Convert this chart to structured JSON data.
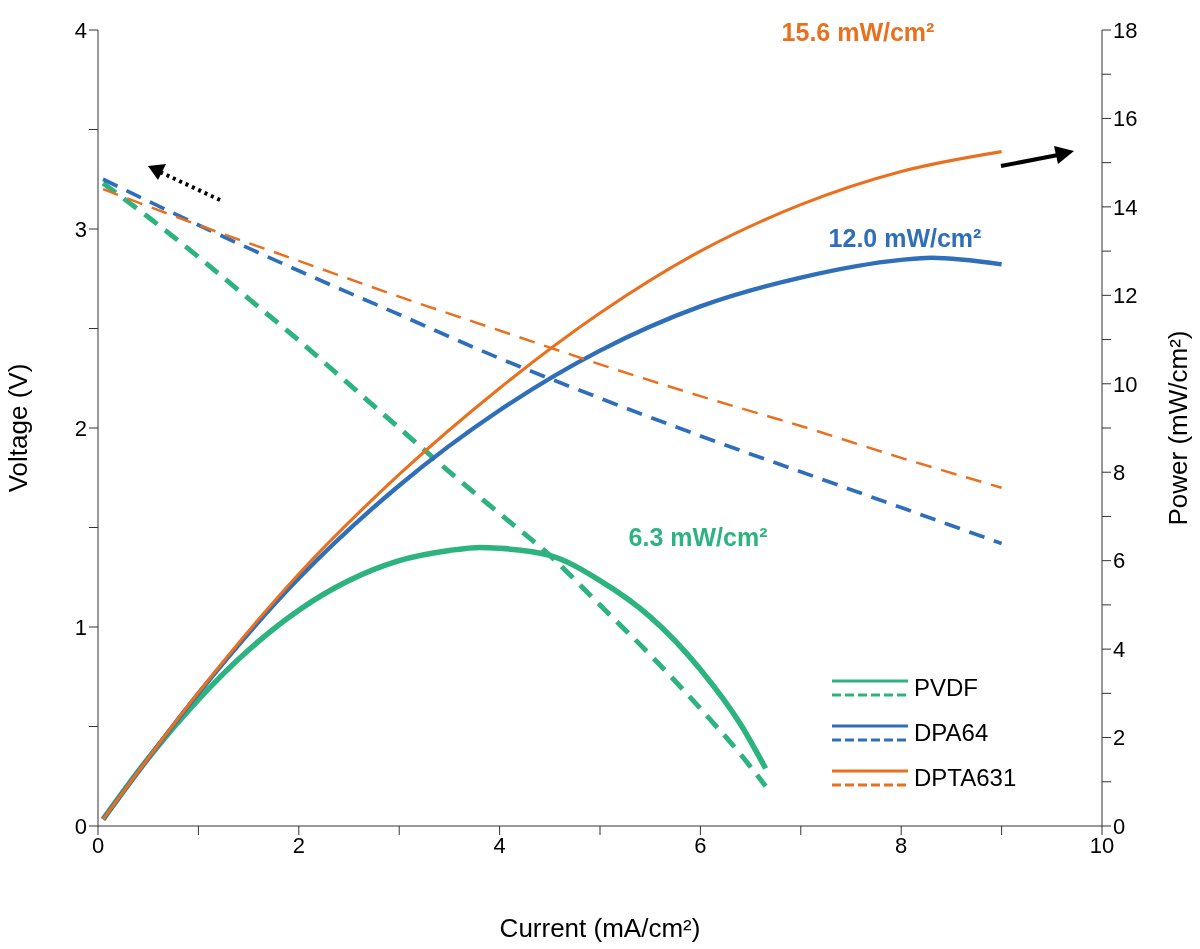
{
  "chart_data": {
    "type": "line",
    "xlabel": "Current (mA/cm²)",
    "ylabel": "Voltage (V)",
    "y2label": "Power (mW/cm²)",
    "xlim": [
      0,
      10
    ],
    "xticks": [
      0,
      {
        "value": 1,
        "label": null
      },
      2,
      {
        "value": 3,
        "label": null
      },
      4,
      {
        "value": 5,
        "label": null
      },
      6,
      {
        "value": 7,
        "label": null
      },
      8,
      {
        "value": 9,
        "label": null
      },
      10
    ],
    "ylim": [
      0,
      4
    ],
    "yticks": [
      0,
      {
        "value": 0.5,
        "label": null
      },
      1,
      {
        "value": 1.5,
        "label": null
      },
      2,
      {
        "value": 2.5,
        "label": null
      },
      3,
      {
        "value": 3.5,
        "label": null
      },
      4
    ],
    "y2lim": [
      0,
      18
    ],
    "y2ticks": [
      0,
      {
        "value": 1,
        "label": null
      },
      2,
      {
        "value": 3,
        "label": null
      },
      4,
      {
        "value": 5,
        "label": null
      },
      6,
      {
        "value": 7,
        "label": null
      },
      8,
      {
        "value": 9,
        "label": null
      },
      10,
      {
        "value": 11,
        "label": null
      },
      12,
      {
        "value": 13,
        "label": null
      },
      14,
      {
        "value": 15,
        "label": null
      },
      16,
      {
        "value": 17,
        "label": null
      },
      18
    ],
    "legend": "bottom right",
    "marker": "none",
    "series": [
      {
        "name": "PVDF",
        "color": "#2db37f",
        "line_style": "solid",
        "axis": "y2",
        "x": [
          0.05,
          0.5,
          1,
          1.5,
          2,
          2.5,
          3,
          3.5,
          3.8,
          4,
          4.5,
          5,
          5.5,
          6,
          6.4,
          6.65
        ],
        "values": [
          0.15,
          1.53,
          2.86,
          3.98,
          4.88,
          5.55,
          6.0,
          6.23,
          6.3,
          6.28,
          6.12,
          5.55,
          4.73,
          3.54,
          2.3,
          1.3
        ]
      },
      {
        "color": "#2db37f",
        "line_style": "dashed",
        "x": [
          0.05,
          0.5,
          1,
          1.5,
          2,
          2.5,
          3,
          3.5,
          4,
          4.5,
          5,
          5.5,
          6,
          6.4,
          6.65
        ],
        "values": [
          3.23,
          3.06,
          2.86,
          2.65,
          2.44,
          2.22,
          2.0,
          1.78,
          1.57,
          1.36,
          1.11,
          0.86,
          0.59,
          0.36,
          0.2
        ]
      },
      {
        "name": "DPA64",
        "color": "#2f6fba",
        "line_style": "solid",
        "axis": "y2",
        "x": [
          0.05,
          1,
          2,
          3,
          4,
          5,
          6,
          7,
          8,
          8.3,
          9
        ],
        "values": [
          0.15,
          3.0,
          5.6,
          7.7,
          9.4,
          10.75,
          11.75,
          12.4,
          12.8,
          12.85,
          12.7
        ]
      },
      {
        "color": "#2f6fba",
        "line_style": "dashed",
        "x": [
          0.05,
          1,
          2,
          3,
          4,
          5,
          6,
          7,
          8,
          9
        ],
        "values": [
          3.25,
          3.02,
          2.79,
          2.57,
          2.35,
          2.15,
          1.96,
          1.78,
          1.6,
          1.42
        ]
      },
      {
        "name": "DPTA631",
        "color": "#e8701f",
        "line_style": "solid",
        "axis": "y2",
        "x": [
          0.05,
          1,
          2,
          3,
          4,
          5,
          6,
          7,
          8,
          9
        ],
        "values": [
          0.15,
          3.02,
          5.7,
          7.95,
          9.9,
          11.6,
          13.0,
          14.05,
          14.8,
          15.25
        ]
      },
      {
        "color": "#e8701f",
        "line_style": "dashed",
        "x": [
          0.05,
          1,
          2,
          3,
          4,
          5,
          6,
          7,
          8,
          9
        ],
        "values": [
          3.2,
          3.02,
          2.84,
          2.66,
          2.49,
          2.32,
          2.16,
          2.01,
          1.85,
          1.7
        ]
      }
    ],
    "annotations": [
      "6.3 mW/cm²",
      "12.0 mW/cm²",
      "15.6 mW/cm²"
    ]
  }
}
